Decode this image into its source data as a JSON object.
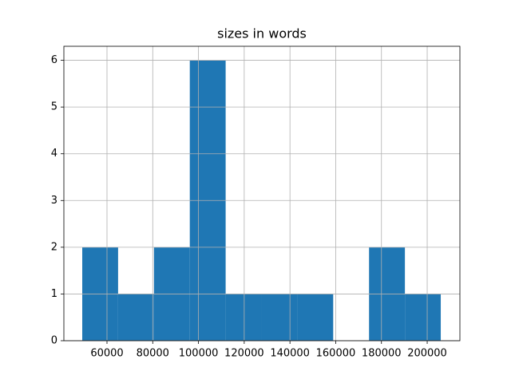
{
  "chart_data": {
    "type": "histogram",
    "title": "sizes in words",
    "bins": [
      49180,
      64855,
      80530,
      96205,
      111880,
      127555,
      143230,
      158905,
      174580,
      190255,
      205930
    ],
    "values": [
      2,
      1,
      2,
      6,
      1,
      1,
      1,
      0,
      2,
      1
    ],
    "color": "#1f77b4",
    "xlim": [
      41150,
      214300
    ],
    "xticks": [
      60000,
      80000,
      100000,
      120000,
      140000,
      160000,
      180000,
      200000
    ],
    "ylim": [
      0,
      6.3
    ],
    "yticks": [
      0,
      1,
      2,
      3,
      4,
      5,
      6
    ],
    "grid": true
  }
}
